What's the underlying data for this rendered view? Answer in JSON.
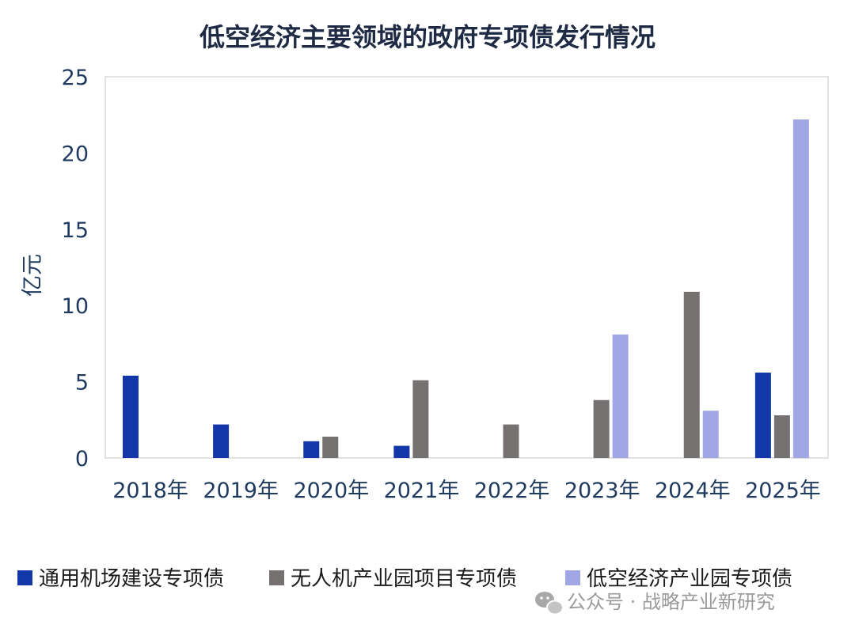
{
  "chart_data": {
    "type": "bar",
    "title": "低空经济主要领域的政府专项债发行情况",
    "ylabel": "亿元",
    "xlabel": "",
    "ylim": [
      0,
      25
    ],
    "yticks": [
      0,
      5,
      10,
      15,
      20,
      25
    ],
    "grid": false,
    "legend": "bottom",
    "categories": [
      "2018年",
      "2019年",
      "2020年",
      "2021年",
      "2022年",
      "2023年",
      "2024年",
      "2025年"
    ],
    "series": [
      {
        "name": "通用机场建设专项债",
        "color": "#1336a8",
        "values": [
          5.4,
          2.2,
          1.1,
          0.8,
          0,
          0,
          0,
          5.6
        ]
      },
      {
        "name": "无人机产业园项目专项债",
        "color": "#767171",
        "values": [
          0,
          0,
          1.4,
          5.1,
          2.2,
          3.8,
          10.9,
          2.8
        ]
      },
      {
        "name": "低空经济产业园专项债",
        "color": "#a0a7e4",
        "values": [
          0,
          0,
          0,
          0,
          0,
          8.1,
          3.1,
          22.2
        ]
      }
    ]
  },
  "watermark": {
    "text": "公众号 · 战略产业新研究",
    "icon": "wechat-icon"
  }
}
